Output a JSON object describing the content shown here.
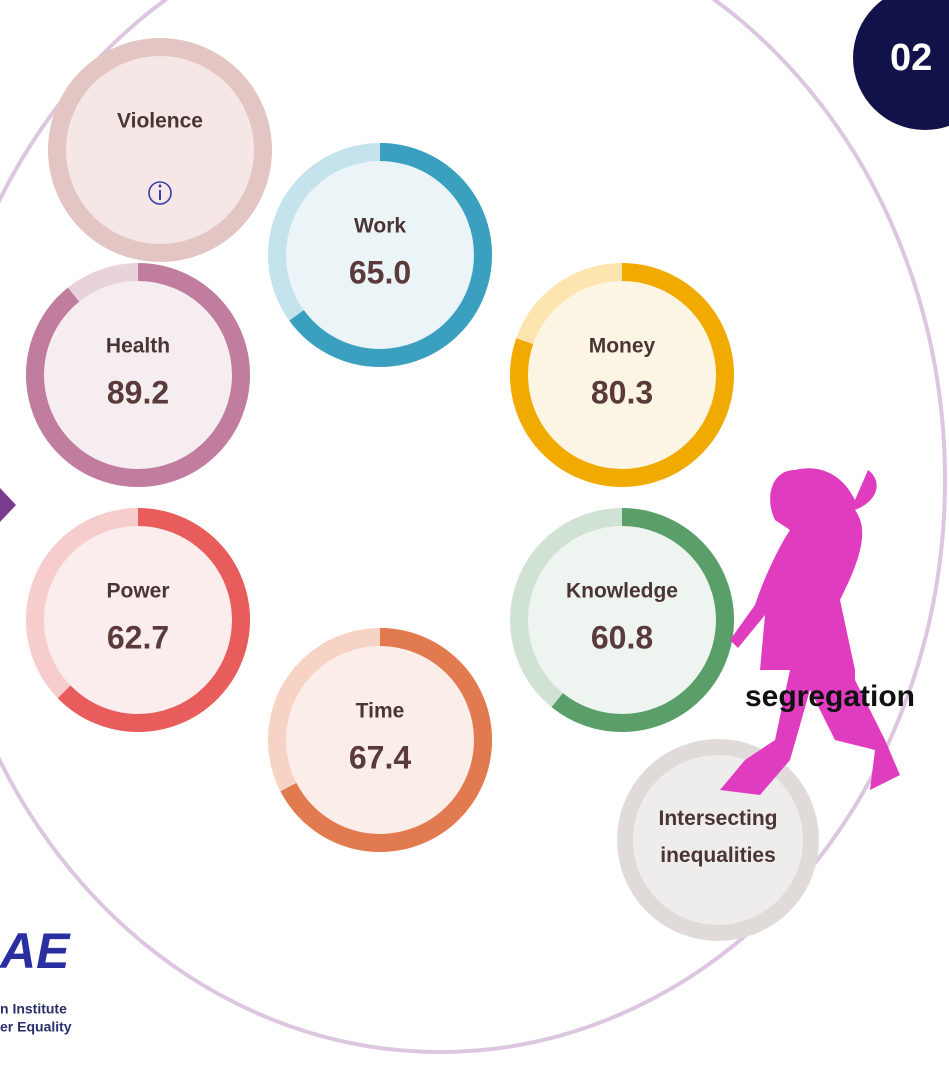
{
  "badge": "02",
  "domains": [
    {
      "label": "Violence"
    },
    {
      "label": "Work",
      "score": {
        "value": 65,
        "label": "65.0"
      }
    },
    {
      "label": "Health",
      "score": 89.2
    },
    {
      "label": "Money",
      "score": 80.3
    },
    {
      "label": "Power",
      "score": 62.7
    },
    {
      "label": "Knowledge",
      "score": 60.8
    },
    {
      "label": "Time",
      "score": 67.4
    }
  ],
  "extra": {
    "label": "Intersecting inequalities"
  },
  "overlay_word": "segregation",
  "logo": {
    "mark": "AE",
    "line1": "n Institute",
    "line2": "er Equality"
  }
}
